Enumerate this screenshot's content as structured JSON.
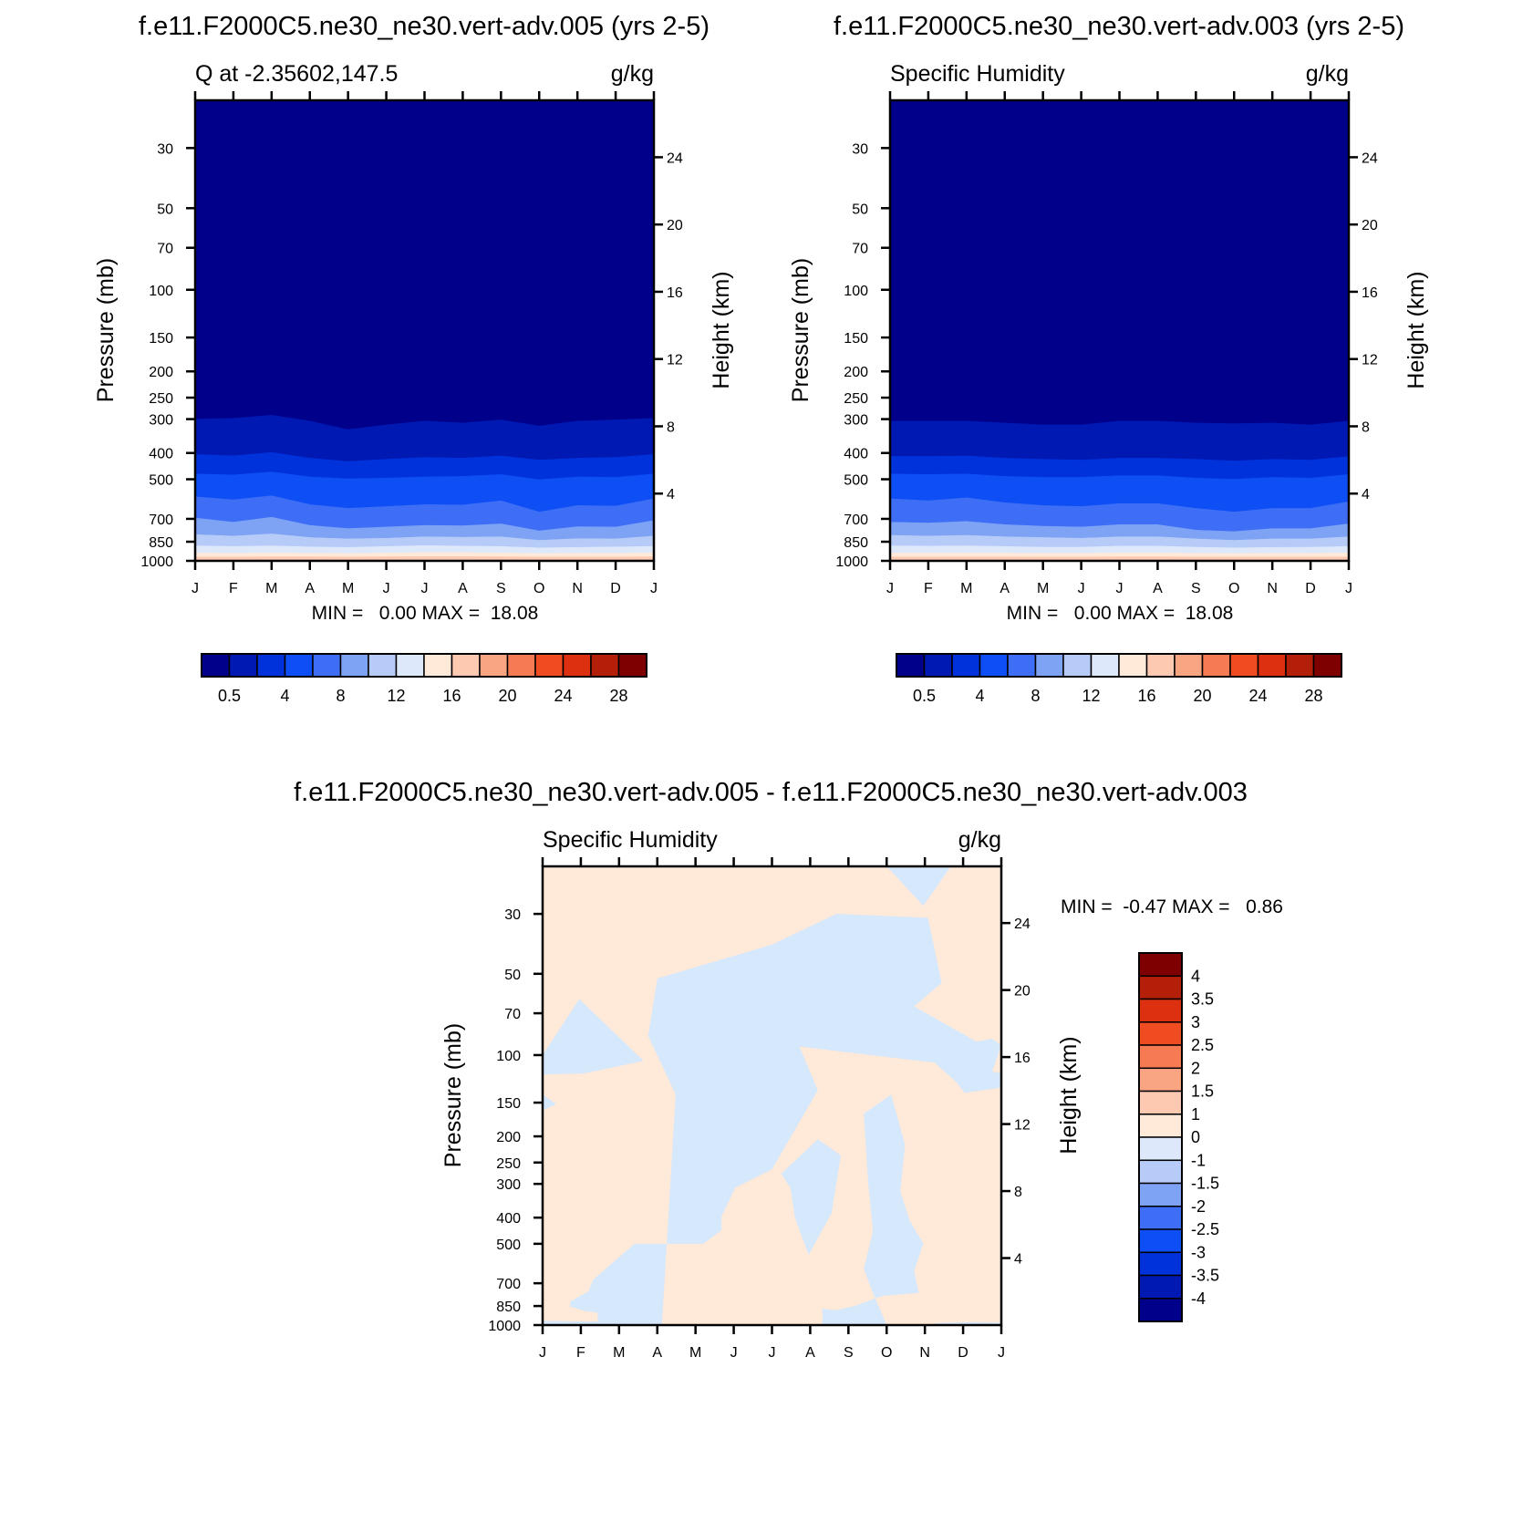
{
  "chart_data": [
    {
      "id": "left",
      "type": "heatmap",
      "title": "f.e11.F2000C5.ne30_ne30.vert-adv.005 (yrs 2-5)",
      "left_label": "Q at -2.35602,147.5",
      "units": "g/kg",
      "ylabel": "Pressure (mb)",
      "y2label": "Height (km)",
      "x_ticks": [
        "J",
        "F",
        "M",
        "A",
        "M",
        "J",
        "J",
        "A",
        "S",
        "O",
        "N",
        "D",
        "J"
      ],
      "y_ticks": [
        "30",
        "50",
        "70",
        "100",
        "150",
        "200",
        "250",
        "300",
        "400",
        "500",
        "700",
        "850",
        "1000"
      ],
      "y_tick_values": [
        30,
        50,
        70,
        100,
        150,
        200,
        250,
        300,
        400,
        500,
        700,
        850,
        1000
      ],
      "y2_ticks": [
        "24",
        "20",
        "16",
        "12",
        "8",
        "4"
      ],
      "y2_tick_values": [
        24,
        20,
        16,
        12,
        8,
        4
      ],
      "ylim": [
        1000,
        20
      ],
      "stats_text": "MIN =   0.00 MAX =  18.08",
      "min": 0.0,
      "max": 18.08,
      "colorbar": {
        "labels": [
          "0.5",
          "4",
          "8",
          "12",
          "16",
          "20",
          "24",
          "28"
        ],
        "label_positions": [
          0.5,
          2.5,
          4.5,
          6.5,
          8.5,
          10.5,
          12.5,
          14.5
        ],
        "colors": [
          "#00008a",
          "#0019b2",
          "#0032db",
          "#0e4ef5",
          "#3d6ef5",
          "#7ea3f5",
          "#b6cbf7",
          "#dde9fa",
          "#ffe9d9",
          "#fdc9b0",
          "#faa582",
          "#f67a52",
          "#f04c21",
          "#dd3010",
          "#b41f0a",
          "#7f0000"
        ]
      },
      "bands": [
        {
          "color_index": 1,
          "upper": [
            300,
            298,
            290,
            305,
            328,
            315,
            305,
            310,
            302,
            318,
            305,
            302,
            298
          ]
        },
        {
          "color_index": 2,
          "upper": [
            405,
            410,
            398,
            418,
            430,
            422,
            415,
            418,
            410,
            425,
            418,
            415,
            405
          ]
        },
        {
          "color_index": 3,
          "upper": [
            478,
            482,
            470,
            490,
            498,
            495,
            490,
            488,
            480,
            502,
            490,
            492,
            478
          ]
        },
        {
          "color_index": 4,
          "upper": [
            580,
            595,
            575,
            620,
            640,
            630,
            620,
            622,
            600,
            660,
            625,
            628,
            590
          ]
        },
        {
          "color_index": 5,
          "upper": [
            695,
            720,
            690,
            740,
            760,
            750,
            740,
            742,
            730,
            775,
            748,
            750,
            710
          ]
        },
        {
          "color_index": 6,
          "upper": [
            800,
            810,
            795,
            820,
            830,
            825,
            815,
            818,
            815,
            840,
            828,
            830,
            810
          ]
        },
        {
          "color_index": 7,
          "upper": [
            880,
            885,
            880,
            888,
            892,
            885,
            878,
            882,
            885,
            895,
            892,
            888,
            884
          ]
        },
        {
          "color_index": 8,
          "upper": [
            935,
            938,
            935,
            938,
            940,
            935,
            932,
            932,
            935,
            940,
            938,
            938,
            935
          ]
        },
        {
          "color_index": 9,
          "upper": [
            968,
            968,
            966,
            966,
            968,
            966,
            965,
            965,
            966,
            968,
            968,
            968,
            966
          ]
        }
      ]
    },
    {
      "id": "right",
      "type": "heatmap",
      "title": "f.e11.F2000C5.ne30_ne30.vert-adv.003 (yrs 2-5)",
      "left_label": "Specific Humidity",
      "units": "g/kg",
      "ylabel": "Pressure (mb)",
      "y2label": "Height (km)",
      "x_ticks": [
        "J",
        "F",
        "M",
        "A",
        "M",
        "J",
        "J",
        "A",
        "S",
        "O",
        "N",
        "D",
        "J"
      ],
      "y_ticks": [
        "30",
        "50",
        "70",
        "100",
        "150",
        "200",
        "250",
        "300",
        "400",
        "500",
        "700",
        "850",
        "1000"
      ],
      "y_tick_values": [
        30,
        50,
        70,
        100,
        150,
        200,
        250,
        300,
        400,
        500,
        700,
        850,
        1000
      ],
      "y2_ticks": [
        "24",
        "20",
        "16",
        "12",
        "8",
        "4"
      ],
      "y2_tick_values": [
        24,
        20,
        16,
        12,
        8,
        4
      ],
      "ylim": [
        1000,
        20
      ],
      "stats_text": "MIN =   0.00 MAX =  18.08",
      "min": 0.0,
      "max": 18.08,
      "colorbar": {
        "labels": [
          "0.5",
          "4",
          "8",
          "12",
          "16",
          "20",
          "24",
          "28"
        ],
        "label_positions": [
          0.5,
          2.5,
          4.5,
          6.5,
          8.5,
          10.5,
          12.5,
          14.5
        ],
        "colors": [
          "#00008a",
          "#0019b2",
          "#0032db",
          "#0e4ef5",
          "#3d6ef5",
          "#7ea3f5",
          "#b6cbf7",
          "#dde9fa",
          "#ffe9d9",
          "#fdc9b0",
          "#faa582",
          "#f67a52",
          "#f04c21",
          "#dd3010",
          "#b41f0a",
          "#7f0000"
        ]
      },
      "bands": [
        {
          "color_index": 1,
          "upper": [
            305,
            305,
            305,
            310,
            315,
            315,
            305,
            305,
            310,
            312,
            310,
            315,
            305
          ]
        },
        {
          "color_index": 2,
          "upper": [
            412,
            412,
            410,
            418,
            422,
            425,
            418,
            418,
            422,
            428,
            422,
            425,
            412
          ]
        },
        {
          "color_index": 3,
          "upper": [
            478,
            480,
            478,
            488,
            492,
            492,
            485,
            485,
            495,
            500,
            492,
            495,
            480
          ]
        },
        {
          "color_index": 4,
          "upper": [
            590,
            600,
            585,
            610,
            625,
            630,
            615,
            615,
            640,
            660,
            640,
            640,
            605
          ]
        },
        {
          "color_index": 5,
          "upper": [
            720,
            725,
            715,
            735,
            745,
            750,
            735,
            735,
            770,
            780,
            760,
            760,
            730
          ]
        },
        {
          "color_index": 6,
          "upper": [
            805,
            810,
            805,
            815,
            820,
            825,
            815,
            815,
            830,
            840,
            830,
            830,
            815
          ]
        },
        {
          "color_index": 7,
          "upper": [
            880,
            882,
            880,
            885,
            890,
            890,
            882,
            882,
            890,
            895,
            892,
            890,
            885
          ]
        },
        {
          "color_index": 8,
          "upper": [
            935,
            936,
            935,
            936,
            938,
            938,
            934,
            934,
            938,
            940,
            938,
            938,
            935
          ]
        },
        {
          "color_index": 9,
          "upper": [
            968,
            968,
            967,
            967,
            968,
            968,
            966,
            966,
            968,
            968,
            968,
            968,
            967
          ]
        }
      ]
    },
    {
      "id": "diff",
      "type": "heatmap",
      "title": "f.e11.F2000C5.ne30_ne30.vert-adv.005 - f.e11.F2000C5.ne30_ne30.vert-adv.003",
      "left_label": "Specific Humidity",
      "units": "g/kg",
      "ylabel": "Pressure (mb)",
      "y2label": "Height (km)",
      "x_ticks": [
        "J",
        "F",
        "M",
        "A",
        "M",
        "J",
        "J",
        "A",
        "S",
        "O",
        "N",
        "D",
        "J"
      ],
      "y_ticks": [
        "30",
        "50",
        "70",
        "100",
        "150",
        "200",
        "250",
        "300",
        "400",
        "500",
        "700",
        "850",
        "1000"
      ],
      "y_tick_values": [
        30,
        50,
        70,
        100,
        150,
        200,
        250,
        300,
        400,
        500,
        700,
        850,
        1000
      ],
      "y2_ticks": [
        "24",
        "20",
        "16",
        "12",
        "8",
        "4"
      ],
      "y2_tick_values": [
        24,
        20,
        16,
        12,
        8,
        4
      ],
      "ylim": [
        1000,
        20
      ],
      "stats_text": "MIN =  -0.47 MAX =   0.86",
      "min": -0.47,
      "max": 0.86,
      "background_interval": "0 to 1",
      "region_interval": "-1 to 0",
      "colorbar": {
        "labels": [
          "4",
          "3.5",
          "3",
          "2.5",
          "2",
          "1.5",
          "1",
          "0",
          "-1",
          "-1.5",
          "-2",
          "-2.5",
          "-3",
          "-3.5",
          "-4"
        ],
        "colors": [
          "#7f0000",
          "#b41f0a",
          "#dd3010",
          "#f04c21",
          "#f67a52",
          "#faa582",
          "#fdc9b0",
          "#ffe9d9",
          "#dde9fa",
          "#b6cbf7",
          "#7ea3f5",
          "#3d6ef5",
          "#0e4ef5",
          "#0032db",
          "#0019b2",
          "#00008a"
        ]
      },
      "regions": [
        [
          [
            0.26,
            1000
          ],
          [
            0.29,
            140
          ],
          [
            0.23,
            85
          ],
          [
            0.25,
            52
          ],
          [
            0.5,
            39
          ],
          [
            0.64,
            30
          ],
          [
            0.84,
            31
          ],
          [
            0.87,
            54
          ],
          [
            0.81,
            66
          ],
          [
            0.95,
            90
          ],
          [
            0.88,
            108
          ],
          [
            0.56,
            93
          ],
          [
            0.6,
            135
          ],
          [
            0.5,
            265
          ],
          [
            0.42,
            310
          ],
          [
            0.39,
            395
          ],
          [
            0.39,
            445
          ],
          [
            0.35,
            500
          ],
          [
            0.2,
            500
          ],
          [
            0.11,
            680
          ],
          [
            0.1,
            750
          ],
          [
            0.07,
            800
          ],
          [
            0.06,
            820
          ],
          [
            0.06,
            855
          ],
          [
            0.09,
            885
          ],
          [
            0.12,
            900
          ],
          [
            0.12,
            1000
          ]
        ],
        [
          [
            0.0,
            100
          ],
          [
            0.08,
            62
          ],
          [
            0.22,
            105
          ],
          [
            0.09,
            117
          ],
          [
            0.0,
            118
          ]
        ],
        [
          [
            0.0,
            140
          ],
          [
            0.03,
            152
          ],
          [
            0.0,
            160
          ]
        ],
        [
          [
            0.52,
            275
          ],
          [
            0.6,
            205
          ],
          [
            0.65,
            235
          ],
          [
            0.63,
            385
          ],
          [
            0.58,
            550
          ],
          [
            0.55,
            400
          ],
          [
            0.54,
            310
          ]
        ],
        [
          [
            0.7,
            165
          ],
          [
            0.76,
            140
          ],
          [
            0.79,
            215
          ],
          [
            0.78,
            320
          ],
          [
            0.8,
            410
          ],
          [
            0.83,
            500
          ],
          [
            0.81,
            630
          ],
          [
            0.82,
            760
          ],
          [
            0.74,
            780
          ],
          [
            0.68,
            850
          ],
          [
            0.64,
            880
          ],
          [
            0.61,
            870
          ],
          [
            0.61,
            1000
          ],
          [
            0.75,
            1000
          ],
          [
            0.72,
            760
          ],
          [
            0.7,
            620
          ],
          [
            0.72,
            450
          ],
          [
            0.71,
            300
          ]
        ],
        [
          [
            0.8,
            87
          ],
          [
            0.9,
            92
          ],
          [
            0.98,
            87
          ],
          [
            1.0,
            92
          ],
          [
            0.98,
            115
          ],
          [
            1.0,
            117
          ],
          [
            1.0,
            132
          ],
          [
            0.92,
            138
          ],
          [
            0.9,
            125
          ],
          [
            0.85,
            105
          ],
          [
            0.79,
            92
          ]
        ],
        [
          [
            0.75,
            20
          ],
          [
            0.89,
            20
          ],
          [
            0.83,
            28
          ]
        ],
        [
          [
            0.0,
            965
          ],
          [
            0.1,
            970
          ],
          [
            0.2,
            968
          ],
          [
            0.18,
            1000
          ],
          [
            0.0,
            1000
          ]
        ],
        [
          [
            0.85,
            985
          ],
          [
            0.93,
            975
          ],
          [
            1.0,
            980
          ],
          [
            1.0,
            1000
          ],
          [
            0.88,
            1000
          ]
        ]
      ]
    }
  ]
}
